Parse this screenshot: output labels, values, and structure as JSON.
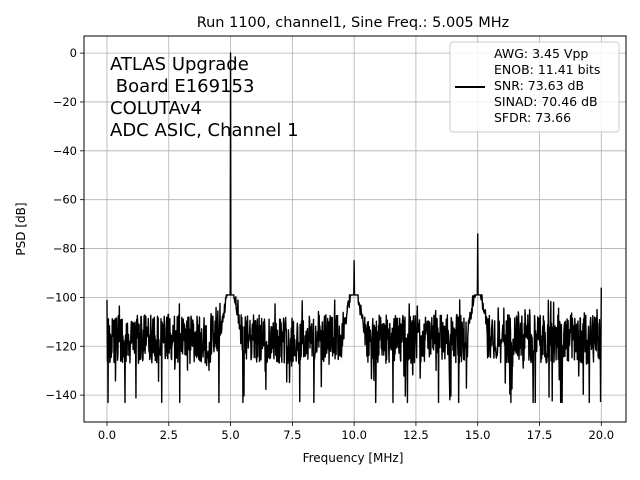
{
  "chart_data": {
    "type": "line",
    "title": "Run 1100, channel1, Sine Freq.: 5.005 MHz",
    "xlabel": "Frequency [MHz]",
    "ylabel": "PSD [dB]",
    "xlim": [
      -0.93,
      21.0
    ],
    "ylim": [
      -151,
      7
    ],
    "xticks": [
      0.0,
      2.5,
      5.0,
      7.5,
      10.0,
      12.5,
      15.0,
      17.5,
      20.0
    ],
    "xtick_labels": [
      "0.0",
      "2.5",
      "5.0",
      "7.5",
      "10.0",
      "12.5",
      "15.0",
      "17.5",
      "20.0"
    ],
    "yticks": [
      0,
      -20,
      -40,
      -60,
      -80,
      -100,
      -120,
      -140
    ],
    "ytick_labels": [
      "0",
      "−20",
      "−40",
      "−60",
      "−80",
      "−100",
      "−120",
      "−140"
    ],
    "grid": true,
    "annotation_lines": [
      "ATLAS Upgrade",
      " Board E169153",
      "COLUTAv4",
      "ADC ASIC, Channel 1"
    ],
    "legend": {
      "placement": "top-right",
      "lines": [
        "AWG: 3.45 Vpp",
        "ENOB: 11.41 bits",
        "SNR: 73.63 dB",
        "SINAD: 70.46 dB",
        "SFDR: 73.66"
      ]
    },
    "line_color": "#000000",
    "series": [
      {
        "noise_floor_db": -117,
        "noise_range_db": [
          -143,
          -101
        ],
        "features": [
          {
            "x": 0.0,
            "y": -101
          },
          {
            "x": 5.005,
            "y": 0
          },
          {
            "x": 10.0,
            "y": -85
          },
          {
            "x": 15.0,
            "y": -74
          },
          {
            "x": 20.0,
            "y": -96
          }
        ]
      }
    ]
  }
}
